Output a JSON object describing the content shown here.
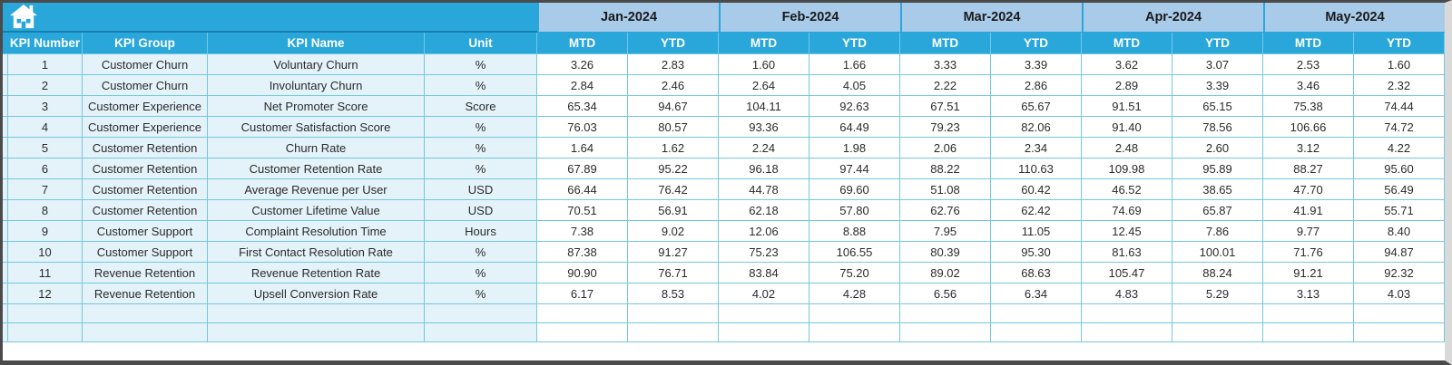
{
  "header": {
    "left_columns": [
      "KPI Number",
      "KPI Group",
      "KPI Name",
      "Unit"
    ],
    "months": [
      "Jan-2024",
      "Feb-2024",
      "Mar-2024",
      "Apr-2024",
      "May-2024"
    ],
    "period_labels": [
      "MTD",
      "YTD"
    ]
  },
  "rows": [
    {
      "number": "1",
      "group": "Customer Churn",
      "name": "Voluntary Churn",
      "unit": "%",
      "values": [
        "3.26",
        "2.83",
        "1.60",
        "1.66",
        "3.33",
        "3.39",
        "3.62",
        "3.07",
        "2.53",
        "1.60"
      ]
    },
    {
      "number": "2",
      "group": "Customer Churn",
      "name": "Involuntary Churn",
      "unit": "%",
      "values": [
        "2.84",
        "2.46",
        "2.64",
        "4.05",
        "2.22",
        "2.86",
        "2.89",
        "3.39",
        "3.46",
        "2.32"
      ]
    },
    {
      "number": "3",
      "group": "Customer Experience",
      "name": "Net Promoter Score",
      "unit": "Score",
      "values": [
        "65.34",
        "94.67",
        "104.11",
        "92.63",
        "67.51",
        "65.67",
        "91.51",
        "65.15",
        "75.38",
        "74.44"
      ]
    },
    {
      "number": "4",
      "group": "Customer Experience",
      "name": "Customer Satisfaction Score",
      "unit": "%",
      "values": [
        "76.03",
        "80.57",
        "93.36",
        "64.49",
        "79.23",
        "82.06",
        "91.40",
        "78.56",
        "106.66",
        "74.72"
      ]
    },
    {
      "number": "5",
      "group": "Customer Retention",
      "name": "Churn Rate",
      "unit": "%",
      "values": [
        "1.64",
        "1.62",
        "2.24",
        "1.98",
        "2.06",
        "2.34",
        "2.48",
        "2.60",
        "3.12",
        "4.22"
      ]
    },
    {
      "number": "6",
      "group": "Customer Retention",
      "name": "Customer Retention Rate",
      "unit": "%",
      "values": [
        "67.89",
        "95.22",
        "96.18",
        "97.44",
        "88.22",
        "110.63",
        "109.98",
        "95.89",
        "88.27",
        "95.60"
      ]
    },
    {
      "number": "7",
      "group": "Customer Retention",
      "name": "Average Revenue per User",
      "unit": "USD",
      "values": [
        "66.44",
        "76.42",
        "44.78",
        "69.60",
        "51.08",
        "60.42",
        "46.52",
        "38.65",
        "47.70",
        "56.49"
      ]
    },
    {
      "number": "8",
      "group": "Customer Retention",
      "name": "Customer Lifetime Value",
      "unit": "USD",
      "values": [
        "70.51",
        "56.91",
        "62.18",
        "57.80",
        "62.76",
        "62.42",
        "74.69",
        "65.87",
        "41.91",
        "55.71"
      ]
    },
    {
      "number": "9",
      "group": "Customer Support",
      "name": "Complaint Resolution Time",
      "unit": "Hours",
      "values": [
        "7.38",
        "9.02",
        "12.06",
        "8.88",
        "7.95",
        "11.05",
        "12.45",
        "7.86",
        "9.77",
        "8.40"
      ]
    },
    {
      "number": "10",
      "group": "Customer Support",
      "name": "First Contact Resolution Rate",
      "unit": "%",
      "values": [
        "87.38",
        "91.27",
        "75.23",
        "106.55",
        "80.39",
        "95.30",
        "81.63",
        "100.01",
        "71.76",
        "94.87"
      ]
    },
    {
      "number": "11",
      "group": "Revenue Retention",
      "name": "Revenue Retention Rate",
      "unit": "%",
      "values": [
        "90.90",
        "76.71",
        "83.84",
        "75.20",
        "89.02",
        "68.63",
        "105.47",
        "88.24",
        "91.21",
        "92.32"
      ]
    },
    {
      "number": "12",
      "group": "Revenue Retention",
      "name": "Upsell Conversion Rate",
      "unit": "%",
      "values": [
        "6.17",
        "8.53",
        "4.02",
        "4.28",
        "6.56",
        "6.34",
        "4.83",
        "5.29",
        "3.13",
        "4.03"
      ]
    }
  ],
  "empty_row_count": 2,
  "colors": {
    "header_cyan": "#29a7db",
    "month_band": "#a9cbea",
    "month_text": "#1a1a1a",
    "header_text": "#ffffff",
    "left_cell_bg": "#e4f2f9",
    "data_bg": "#ffffff",
    "gridline": "#74c8de",
    "body_text": "#2b2b2b"
  }
}
